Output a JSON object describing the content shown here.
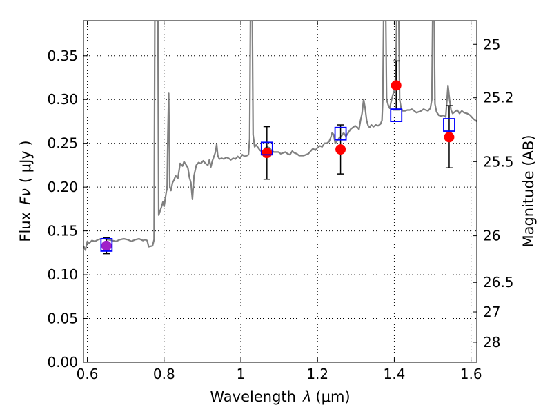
{
  "chart_data": {
    "type": "line+scatter",
    "xlabel": "Wavelength",
    "xlabel_symbol": "λ",
    "xlabel_unit": "(μm)",
    "ylabel": "Flux",
    "ylabel_symbol": "Fν",
    "ylabel_unit": "( μJy )",
    "y2label": "Magnitude (AB)",
    "xlim": [
      0.59,
      1.615
    ],
    "ylim": [
      0.0,
      0.39
    ],
    "grid": true,
    "x_ticks": [
      0.6,
      0.8,
      1.0,
      1.2,
      1.4,
      1.6
    ],
    "x_tick_labels": [
      "0.6",
      "0.8",
      "1",
      "1.2",
      "1.4",
      "1.6"
    ],
    "y_ticks": [
      0.0,
      0.05,
      0.1,
      0.15,
      0.2,
      0.25,
      0.3,
      0.35
    ],
    "y_tick_labels": [
      "0.00",
      "0.05",
      "0.10",
      "0.15",
      "0.20",
      "0.25",
      "0.30",
      "0.35"
    ],
    "y2_ticks": [
      {
        "label": "25",
        "flux": 0.363
      },
      {
        "label": "25.2",
        "flux": 0.302
      },
      {
        "label": "25.5",
        "flux": 0.229
      },
      {
        "label": "26",
        "flux": 0.1445
      },
      {
        "label": "26.5",
        "flux": 0.0912
      },
      {
        "label": "27",
        "flux": 0.0575
      },
      {
        "label": "28",
        "flux": 0.0229
      }
    ],
    "colors": {
      "spectrum": "#808080",
      "observed": "#ff0000",
      "observed_blue_band": "#a020c8",
      "model_box": "#0000ff",
      "errorbar": "#000000"
    },
    "spectrum": [
      [
        0.59,
        0.133
      ],
      [
        0.595,
        0.128
      ],
      [
        0.6,
        0.138
      ],
      [
        0.605,
        0.136
      ],
      [
        0.612,
        0.139
      ],
      [
        0.62,
        0.138
      ],
      [
        0.628,
        0.14
      ],
      [
        0.636,
        0.141
      ],
      [
        0.645,
        0.141
      ],
      [
        0.655,
        0.14
      ],
      [
        0.665,
        0.139
      ],
      [
        0.675,
        0.138
      ],
      [
        0.685,
        0.14
      ],
      [
        0.695,
        0.141
      ],
      [
        0.705,
        0.14
      ],
      [
        0.715,
        0.138
      ],
      [
        0.725,
        0.14
      ],
      [
        0.735,
        0.141
      ],
      [
        0.745,
        0.139
      ],
      [
        0.75,
        0.14
      ],
      [
        0.756,
        0.139
      ],
      [
        0.76,
        0.132
      ],
      [
        0.77,
        0.133
      ],
      [
        0.774,
        0.14
      ],
      [
        0.776,
        0.39
      ],
      [
        0.784,
        0.39
      ],
      [
        0.786,
        0.168
      ],
      [
        0.789,
        0.172
      ],
      [
        0.793,
        0.177
      ],
      [
        0.797,
        0.183
      ],
      [
        0.8,
        0.178
      ],
      [
        0.803,
        0.186
      ],
      [
        0.806,
        0.195
      ],
      [
        0.808,
        0.198
      ],
      [
        0.81,
        0.26
      ],
      [
        0.812,
        0.307
      ],
      [
        0.815,
        0.2
      ],
      [
        0.818,
        0.196
      ],
      [
        0.822,
        0.205
      ],
      [
        0.826,
        0.208
      ],
      [
        0.83,
        0.213
      ],
      [
        0.836,
        0.21
      ],
      [
        0.842,
        0.227
      ],
      [
        0.848,
        0.224
      ],
      [
        0.852,
        0.229
      ],
      [
        0.858,
        0.225
      ],
      [
        0.862,
        0.222
      ],
      [
        0.866,
        0.211
      ],
      [
        0.87,
        0.205
      ],
      [
        0.874,
        0.186
      ],
      [
        0.878,
        0.213
      ],
      [
        0.884,
        0.225
      ],
      [
        0.89,
        0.228
      ],
      [
        0.896,
        0.227
      ],
      [
        0.902,
        0.23
      ],
      [
        0.908,
        0.227
      ],
      [
        0.914,
        0.225
      ],
      [
        0.918,
        0.231
      ],
      [
        0.922,
        0.223
      ],
      [
        0.926,
        0.23
      ],
      [
        0.93,
        0.235
      ],
      [
        0.934,
        0.24
      ],
      [
        0.937,
        0.249
      ],
      [
        0.94,
        0.236
      ],
      [
        0.944,
        0.232
      ],
      [
        0.95,
        0.233
      ],
      [
        0.956,
        0.232
      ],
      [
        0.962,
        0.234
      ],
      [
        0.968,
        0.233
      ],
      [
        0.974,
        0.231
      ],
      [
        0.98,
        0.233
      ],
      [
        0.986,
        0.232
      ],
      [
        0.992,
        0.235
      ],
      [
        0.998,
        0.233
      ],
      [
        1.004,
        0.237
      ],
      [
        1.01,
        0.235
      ],
      [
        1.016,
        0.236
      ],
      [
        1.02,
        0.237
      ],
      [
        1.023,
        0.255
      ],
      [
        1.025,
        0.39
      ],
      [
        1.03,
        0.39
      ],
      [
        1.032,
        0.26
      ],
      [
        1.036,
        0.246
      ],
      [
        1.04,
        0.248
      ],
      [
        1.05,
        0.242
      ],
      [
        1.056,
        0.24
      ],
      [
        1.062,
        0.244
      ],
      [
        1.068,
        0.246
      ],
      [
        1.074,
        0.245
      ],
      [
        1.08,
        0.242
      ],
      [
        1.086,
        0.24
      ],
      [
        1.092,
        0.24
      ],
      [
        1.098,
        0.24
      ],
      [
        1.104,
        0.238
      ],
      [
        1.11,
        0.239
      ],
      [
        1.116,
        0.24
      ],
      [
        1.122,
        0.238
      ],
      [
        1.128,
        0.237
      ],
      [
        1.134,
        0.241
      ],
      [
        1.14,
        0.239
      ],
      [
        1.146,
        0.238
      ],
      [
        1.152,
        0.236
      ],
      [
        1.158,
        0.236
      ],
      [
        1.164,
        0.236
      ],
      [
        1.17,
        0.237
      ],
      [
        1.176,
        0.238
      ],
      [
        1.182,
        0.241
      ],
      [
        1.188,
        0.244
      ],
      [
        1.194,
        0.242
      ],
      [
        1.2,
        0.245
      ],
      [
        1.206,
        0.247
      ],
      [
        1.212,
        0.246
      ],
      [
        1.218,
        0.25
      ],
      [
        1.224,
        0.25
      ],
      [
        1.23,
        0.252
      ],
      [
        1.234,
        0.256
      ],
      [
        1.238,
        0.262
      ],
      [
        1.242,
        0.26
      ],
      [
        1.246,
        0.25
      ],
      [
        1.25,
        0.252
      ],
      [
        1.256,
        0.256
      ],
      [
        1.262,
        0.258
      ],
      [
        1.268,
        0.262
      ],
      [
        1.274,
        0.258
      ],
      [
        1.28,
        0.262
      ],
      [
        1.286,
        0.266
      ],
      [
        1.292,
        0.268
      ],
      [
        1.298,
        0.27
      ],
      [
        1.304,
        0.268
      ],
      [
        1.308,
        0.266
      ],
      [
        1.312,
        0.276
      ],
      [
        1.316,
        0.284
      ],
      [
        1.32,
        0.3
      ],
      [
        1.324,
        0.29
      ],
      [
        1.328,
        0.276
      ],
      [
        1.332,
        0.27
      ],
      [
        1.336,
        0.268
      ],
      [
        1.34,
        0.271
      ],
      [
        1.346,
        0.269
      ],
      [
        1.352,
        0.271
      ],
      [
        1.358,
        0.27
      ],
      [
        1.364,
        0.272
      ],
      [
        1.368,
        0.276
      ],
      [
        1.37,
        0.3
      ],
      [
        1.372,
        0.39
      ],
      [
        1.378,
        0.39
      ],
      [
        1.38,
        0.3
      ],
      [
        1.384,
        0.294
      ],
      [
        1.388,
        0.29
      ],
      [
        1.392,
        0.298
      ],
      [
        1.396,
        0.305
      ],
      [
        1.4,
        0.31
      ],
      [
        1.404,
        0.33
      ],
      [
        1.406,
        0.39
      ],
      [
        1.412,
        0.39
      ],
      [
        1.414,
        0.3
      ],
      [
        1.418,
        0.29
      ],
      [
        1.422,
        0.287
      ],
      [
        1.428,
        0.287
      ],
      [
        1.434,
        0.288
      ],
      [
        1.44,
        0.288
      ],
      [
        1.446,
        0.289
      ],
      [
        1.452,
        0.287
      ],
      [
        1.458,
        0.285
      ],
      [
        1.464,
        0.286
      ],
      [
        1.47,
        0.287
      ],
      [
        1.476,
        0.289
      ],
      [
        1.482,
        0.288
      ],
      [
        1.488,
        0.287
      ],
      [
        1.494,
        0.29
      ],
      [
        1.498,
        0.3
      ],
      [
        1.5,
        0.39
      ],
      [
        1.504,
        0.39
      ],
      [
        1.506,
        0.295
      ],
      [
        1.51,
        0.286
      ],
      [
        1.516,
        0.282
      ],
      [
        1.522,
        0.281
      ],
      [
        1.528,
        0.282
      ],
      [
        1.534,
        0.28
      ],
      [
        1.54,
        0.316
      ],
      [
        1.544,
        0.3
      ],
      [
        1.548,
        0.288
      ],
      [
        1.552,
        0.284
      ],
      [
        1.558,
        0.286
      ],
      [
        1.564,
        0.288
      ],
      [
        1.57,
        0.284
      ],
      [
        1.576,
        0.287
      ],
      [
        1.582,
        0.285
      ],
      [
        1.59,
        0.284
      ],
      [
        1.598,
        0.282
      ],
      [
        1.606,
        0.278
      ],
      [
        1.615,
        0.275
      ]
    ],
    "observed": [
      {
        "x": 0.65,
        "y": 0.133,
        "y_low": 0.124,
        "y_high": 0.142
      },
      {
        "x": 1.068,
        "y": 0.239,
        "y_low": 0.209,
        "y_high": 0.269
      },
      {
        "x": 1.26,
        "y": 0.243,
        "y_low": 0.215,
        "y_high": 0.271
      },
      {
        "x": 1.405,
        "y": 0.316,
        "y_low": 0.288,
        "y_high": 0.344
      },
      {
        "x": 1.543,
        "y": 0.257,
        "y_low": 0.222,
        "y_high": 0.293
      }
    ],
    "model_boxes": [
      {
        "x": 0.65,
        "y": 0.134
      },
      {
        "x": 1.068,
        "y": 0.244
      },
      {
        "x": 1.26,
        "y": 0.261
      },
      {
        "x": 1.405,
        "y": 0.282
      },
      {
        "x": 1.543,
        "y": 0.271
      }
    ]
  }
}
